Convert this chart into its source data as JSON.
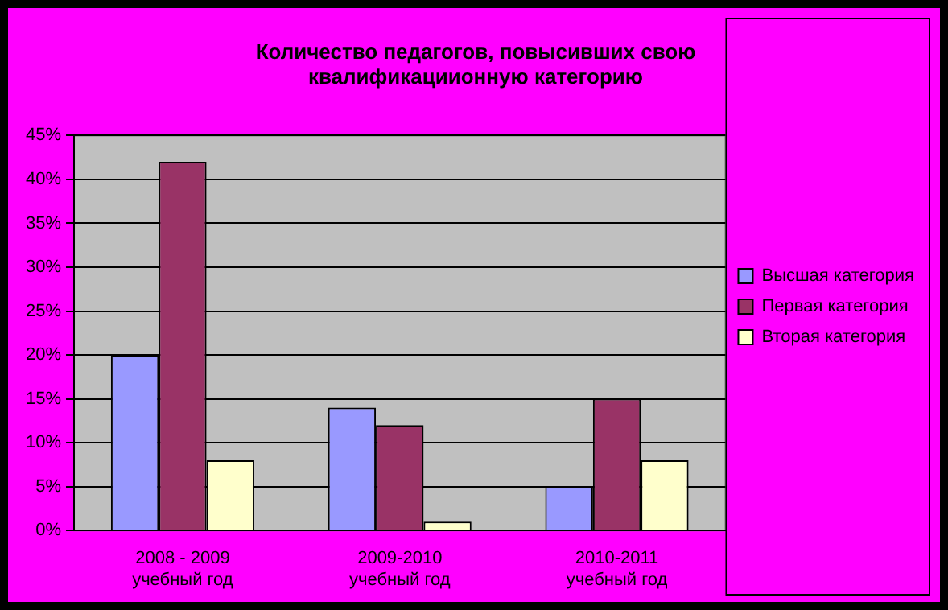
{
  "chart_data": {
    "type": "bar",
    "title": "Количество педагогов, повысивших свою квалификациионную категорию",
    "categories": [
      "2008 - 2009 учебный год",
      "2009-2010 учебный год",
      "2010-2011 учебный год"
    ],
    "series": [
      {
        "name": "Высшая категория",
        "color": "#9999ff",
        "values": [
          20,
          14,
          5
        ]
      },
      {
        "name": "Первая категория",
        "color": "#993366",
        "values": [
          42,
          12,
          15
        ]
      },
      {
        "name": "Вторая категория",
        "color": "#ffffcc",
        "values": [
          8,
          1,
          8
        ]
      }
    ],
    "ylim": [
      0,
      45
    ],
    "yticks": [
      {
        "value": 0,
        "label": "0%"
      },
      {
        "value": 5,
        "label": "5%"
      },
      {
        "value": 10,
        "label": "10%"
      },
      {
        "value": 15,
        "label": "15%"
      },
      {
        "value": 20,
        "label": "20%"
      },
      {
        "value": 25,
        "label": "25%"
      },
      {
        "value": 30,
        "label": "30%"
      },
      {
        "value": 35,
        "label": "35%"
      },
      {
        "value": 40,
        "label": "40%"
      },
      {
        "value": 45,
        "label": "45%"
      }
    ],
    "grid": "y",
    "legend": "right"
  }
}
